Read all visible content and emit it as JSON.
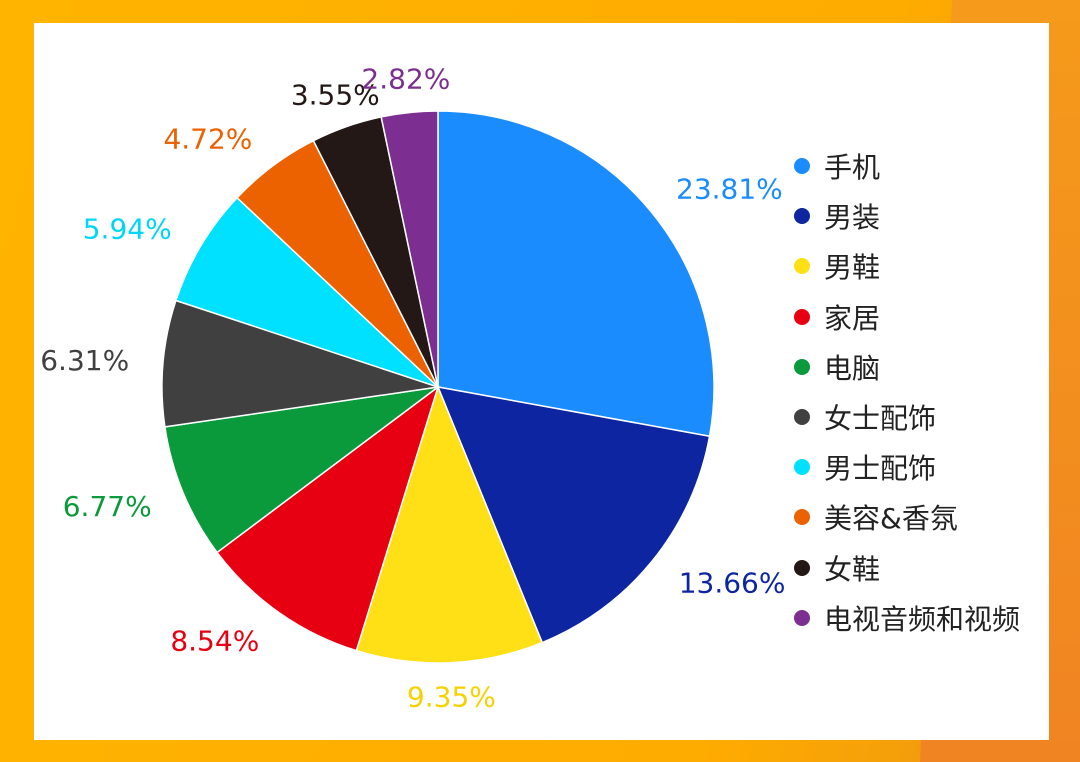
{
  "chart_data": {
    "type": "pie",
    "start_angle": "top",
    "direction": "clockwise",
    "legend_position": "right",
    "slices": [
      {
        "name": "手机",
        "value": 23.81,
        "label": "23.81%",
        "color": "#1a8cfd"
      },
      {
        "name": "男装",
        "value": 13.66,
        "label": "13.66%",
        "color": "#0d25a0"
      },
      {
        "name": "男鞋",
        "value": 9.35,
        "label": "9.35%",
        "color": "#ffe016"
      },
      {
        "name": "家居",
        "value": 8.54,
        "label": "8.54%",
        "color": "#e60012"
      },
      {
        "name": "电脑",
        "value": 6.77,
        "label": "6.77%",
        "color": "#0a9a3c"
      },
      {
        "name": "女士配饰",
        "value": 6.31,
        "label": "6.31%",
        "color": "#404040"
      },
      {
        "name": "男士配饰",
        "value": 5.94,
        "label": "5.94%",
        "color": "#00e0ff"
      },
      {
        "name": "美容&香氛",
        "value": 4.72,
        "label": "4.72%",
        "color": "#ec6100"
      },
      {
        "name": "女鞋",
        "value": 3.55,
        "label": "3.55%",
        "color": "#231815"
      },
      {
        "name": "电视音频和视频",
        "value": 2.82,
        "label": "2.82%",
        "color": "#7d2f91"
      }
    ],
    "label_colors": {
      "手机": "#1a8cfd",
      "男装": "#0d25a0",
      "男鞋": "#f5d200",
      "家居": "#e60012",
      "电脑": "#0a9a3c",
      "女士配饰": "#404040",
      "男士配饰": "#00d6f5",
      "美容&香氛": "#ec6100",
      "女鞋": "#231815",
      "电视音频和视频": "#7d2f91"
    }
  }
}
